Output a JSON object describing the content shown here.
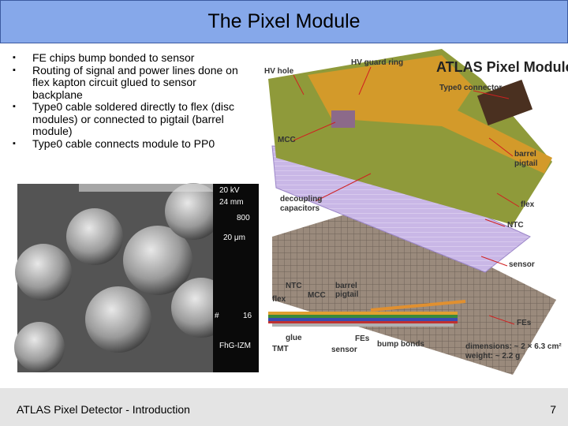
{
  "header": {
    "title": "The Pixel Module"
  },
  "bullets": [
    "FE chips bump bonded to sensor",
    "Routing of signal and power lines done on flex kapton circuit glued to sensor backplane",
    "Type0 cable soldered directly to flex (disc modules) or connected to pigtail (barrel module)",
    "Type0 cable connects module to PP0"
  ],
  "sem_image": {
    "labels": [
      "20 kV",
      "24 mm",
      "800",
      "20 μm",
      "#",
      "16",
      "FhG-IZM"
    ]
  },
  "diagram": {
    "heading": "ATLAS Pixel Module",
    "labels": [
      "HV hole",
      "HV guard ring",
      "Type0 connector",
      "MCC",
      "barrel",
      "pigtail",
      "decoupling",
      "capacitors",
      "flex",
      "NTC",
      "sensor",
      "NTC",
      "barrel",
      "pigtail",
      "flex",
      "MCC",
      "FEs",
      "glue",
      "FEs",
      "bump bonds",
      "TMT",
      "sensor",
      "dimensions: ~ 2 × 6.3 cm²",
      "weight: ~ 2.2 g"
    ]
  },
  "footer": {
    "text": "ATLAS Pixel Detector - Introduction",
    "page": "7"
  }
}
